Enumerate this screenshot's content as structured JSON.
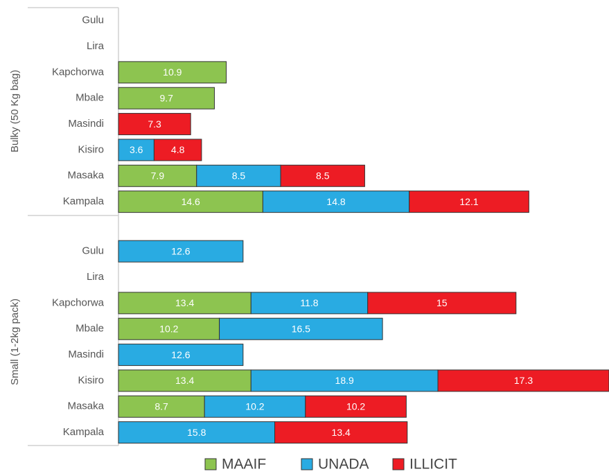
{
  "chart_data": {
    "type": "bar",
    "orientation": "horizontal",
    "stacked": true,
    "groups": [
      {
        "name": "Bulky (50 Kg bag)",
        "categories": [
          "Gulu",
          "Lira",
          "Kapchorwa",
          "Mbale",
          "Masindi",
          "Kisiro",
          "Masaka",
          "Kampala"
        ]
      },
      {
        "name": "Small (1-2kg pack)",
        "categories": [
          "Gulu",
          "Lira",
          "Kapchorwa",
          "Mbale",
          "Masindi",
          "Kisiro",
          "Masaka",
          "Kampala"
        ]
      }
    ],
    "series": [
      {
        "name": "MAAIF",
        "color": "#8dc450",
        "values": [
          [
            null,
            null,
            10.9,
            9.7,
            null,
            null,
            7.9,
            14.6
          ],
          [
            null,
            null,
            13.4,
            10.2,
            null,
            13.4,
            8.7,
            null
          ]
        ]
      },
      {
        "name": "UNADA",
        "color": "#29abe2",
        "values": [
          [
            null,
            null,
            null,
            null,
            null,
            3.6,
            8.5,
            14.8
          ],
          [
            12.6,
            null,
            11.8,
            16.5,
            12.6,
            18.9,
            10.2,
            15.8
          ]
        ]
      },
      {
        "name": "ILLICIT",
        "color": "#ed1c24",
        "values": [
          [
            null,
            null,
            null,
            null,
            7.3,
            4.8,
            8.5,
            12.1
          ],
          [
            null,
            null,
            15,
            null,
            null,
            17.3,
            10.2,
            13.4
          ]
        ]
      }
    ]
  }
}
